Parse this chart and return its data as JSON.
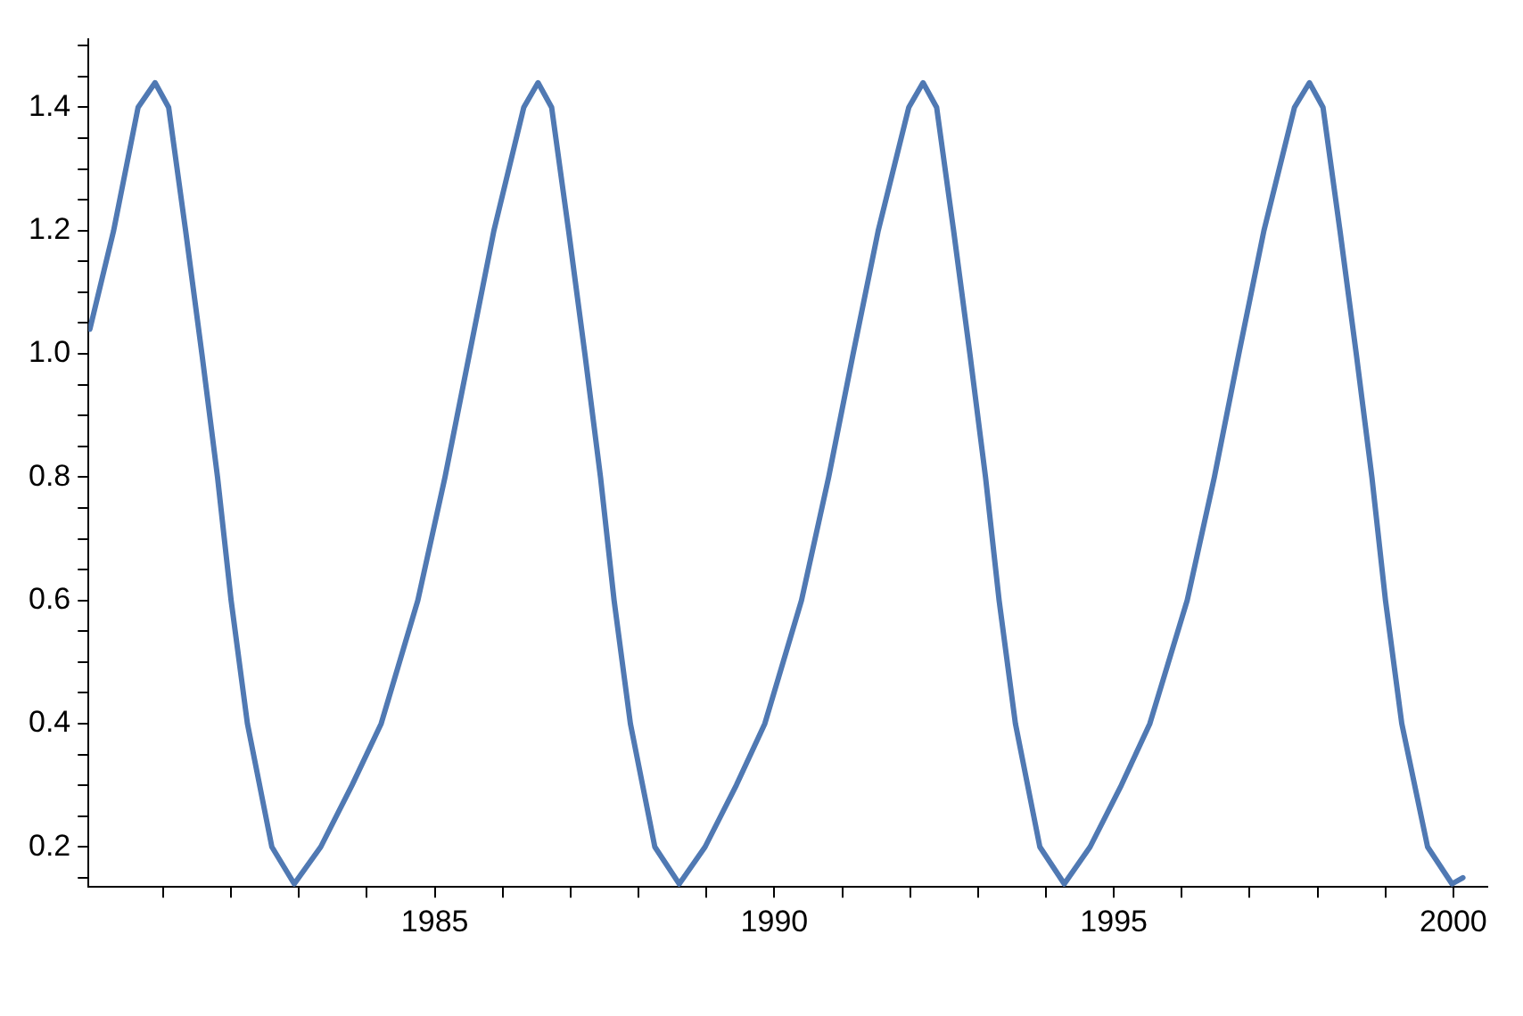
{
  "chart_data": {
    "type": "line",
    "marker": "none",
    "line_style": "solid",
    "xlim": [
      1979.9,
      2000.5
    ],
    "ylim": [
      0.135,
      1.51
    ],
    "xticks": [
      {
        "value": 1981,
        "label": null
      },
      {
        "value": 1982,
        "label": null
      },
      {
        "value": 1983,
        "label": null
      },
      {
        "value": 1984,
        "label": null
      },
      1985,
      {
        "value": 1986,
        "label": null
      },
      {
        "value": 1987,
        "label": null
      },
      {
        "value": 1988,
        "label": null
      },
      {
        "value": 1989,
        "label": null
      },
      1990,
      {
        "value": 1991,
        "label": null
      },
      {
        "value": 1992,
        "label": null
      },
      {
        "value": 1993,
        "label": null
      },
      {
        "value": 1994,
        "label": null
      },
      1995,
      {
        "value": 1996,
        "label": null
      },
      {
        "value": 1997,
        "label": null
      },
      {
        "value": 1998,
        "label": null
      },
      {
        "value": 1999,
        "label": null
      },
      2000
    ],
    "yticks": [
      {
        "value": 0.15,
        "label": null
      },
      {
        "value": 0.2,
        "label": "0.2"
      },
      {
        "value": 0.25,
        "label": null
      },
      {
        "value": 0.3,
        "label": null
      },
      {
        "value": 0.35,
        "label": null
      },
      {
        "value": 0.4,
        "label": "0.4"
      },
      {
        "value": 0.45,
        "label": null
      },
      {
        "value": 0.5,
        "label": null
      },
      {
        "value": 0.55,
        "label": null
      },
      {
        "value": 0.6,
        "label": "0.6"
      },
      {
        "value": 0.65,
        "label": null
      },
      {
        "value": 0.7,
        "label": null
      },
      {
        "value": 0.75,
        "label": null
      },
      {
        "value": 0.8,
        "label": "0.8"
      },
      {
        "value": 0.85,
        "label": null
      },
      {
        "value": 0.9,
        "label": null
      },
      {
        "value": 0.95,
        "label": null
      },
      {
        "value": 1.0,
        "label": "1.0"
      },
      {
        "value": 1.05,
        "label": null
      },
      {
        "value": 1.1,
        "label": null
      },
      {
        "value": 1.15,
        "label": null
      },
      {
        "value": 1.2,
        "label": "1.2"
      },
      {
        "value": 1.25,
        "label": null
      },
      {
        "value": 1.3,
        "label": null
      },
      {
        "value": 1.35,
        "label": null
      },
      {
        "value": 1.4,
        "label": "1.4"
      },
      {
        "value": 1.45,
        "label": null
      },
      {
        "value": 1.5,
        "label": null
      }
    ],
    "series": [
      {
        "color": "#5079b3",
        "x": [
          1979.92,
          1980.27,
          1980.63,
          1980.88,
          1981.08,
          1981.33,
          1981.57,
          1981.8,
          1982.0,
          1982.24,
          1982.6,
          1982.93,
          1983.32,
          1983.78,
          1984.21,
          1984.75,
          1985.15,
          1985.51,
          1985.87,
          1986.31,
          1986.52,
          1986.72,
          1986.97,
          1987.21,
          1987.44,
          1987.64,
          1987.88,
          1988.24,
          1988.6,
          1988.98,
          1989.44,
          1989.86,
          1990.4,
          1990.8,
          1991.16,
          1991.53,
          1991.98,
          1992.19,
          1992.39,
          1992.64,
          1992.88,
          1993.11,
          1993.31,
          1993.55,
          1993.91,
          1994.27,
          1994.65,
          1995.11,
          1995.53,
          1996.08,
          1996.48,
          1996.84,
          1997.21,
          1997.66,
          1997.88,
          1998.08,
          1998.33,
          1998.57,
          1998.8,
          1999.0,
          1999.24,
          1999.62,
          1999.98,
          2000.14
        ],
        "values": [
          1.04,
          1.2,
          1.4,
          1.44,
          1.4,
          1.2,
          1.0,
          0.8,
          0.6,
          0.4,
          0.2,
          0.14,
          0.2,
          0.3,
          0.4,
          0.6,
          0.8,
          1.0,
          1.2,
          1.4,
          1.44,
          1.4,
          1.2,
          1.0,
          0.8,
          0.6,
          0.4,
          0.2,
          0.14,
          0.2,
          0.3,
          0.4,
          0.6,
          0.8,
          1.0,
          1.2,
          1.4,
          1.44,
          1.4,
          1.2,
          1.0,
          0.8,
          0.6,
          0.4,
          0.2,
          0.14,
          0.2,
          0.3,
          0.4,
          0.6,
          0.8,
          1.0,
          1.2,
          1.4,
          1.44,
          1.4,
          1.2,
          1.0,
          0.8,
          0.6,
          0.4,
          0.2,
          0.14,
          0.15
        ]
      }
    ]
  }
}
